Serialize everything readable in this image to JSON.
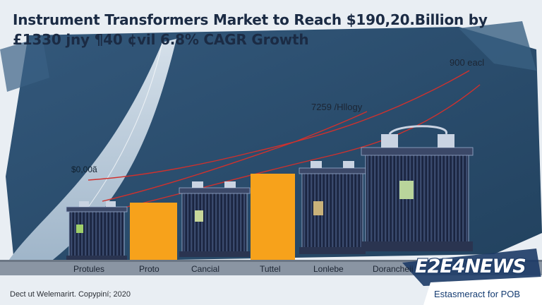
{
  "header": {
    "title_line1": "Instrument Transformers Market to Reach $190,20.Billion by",
    "title_line2": "£1330 jny ¶40 ¢vil 6.8% CAGR Growth"
  },
  "annotations": {
    "top_right": "900 eacl",
    "middle": "7259 /Hllogy",
    "left": "$0,00ã"
  },
  "categories": [
    "Protules",
    "Proto",
    "Cancial",
    "Tuttel",
    "Lonlebe",
    "Dorancheii"
  ],
  "branding": {
    "logo": "E2E4NEWS",
    "tagline": "Estasmeract for POB"
  },
  "footer": {
    "copyright": "Dect ut Welemarirt. Copypiní; 2020"
  },
  "colors": {
    "navy_band": "#2a4d6e",
    "light_band": "#b8c9d9",
    "bar_orange": "#f7a21b",
    "transformer_body": "#1f2a44",
    "trend_line": "#d0312d",
    "brand_blue": "#153c72"
  },
  "icons": {
    "transformer": "electrical-transformer-illustration",
    "bar": "orange-bar"
  }
}
